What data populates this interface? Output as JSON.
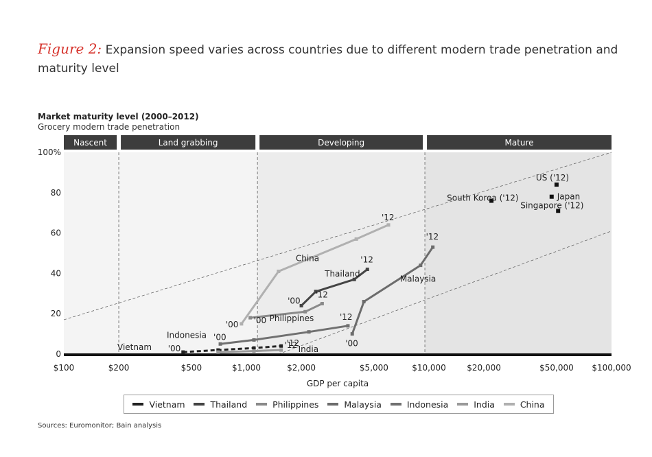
{
  "header": {
    "figure_label": "Figure 2:",
    "figure_text": "Expansion speed varies across countries due to different modern trade penetration and maturity level"
  },
  "chart_data": {
    "type": "line",
    "title": "Market maturity level (2000–2012)",
    "subtitle": "Grocery modern trade penetration",
    "xlabel": "GDP per capita",
    "ylabel": "",
    "x_scale": "log",
    "xlim": [
      100,
      100000
    ],
    "ylim": [
      0,
      100
    ],
    "x_ticks": [
      {
        "value": 100,
        "label": "$100"
      },
      {
        "value": 200,
        "label": "$200"
      },
      {
        "value": 500,
        "label": "$500"
      },
      {
        "value": 1000,
        "label": "$1,000"
      },
      {
        "value": 2000,
        "label": "$2,000"
      },
      {
        "value": 5000,
        "label": "$5,000"
      },
      {
        "value": 10000,
        "label": "$10,000"
      },
      {
        "value": 20000,
        "label": "$20,000"
      },
      {
        "value": 50000,
        "label": "$50,000"
      },
      {
        "value": 100000,
        "label": "$100,000"
      }
    ],
    "y_ticks": [
      {
        "value": 0,
        "label": "0"
      },
      {
        "value": 20,
        "label": "20"
      },
      {
        "value": 40,
        "label": "40"
      },
      {
        "value": 60,
        "label": "60"
      },
      {
        "value": 80,
        "label": "80"
      },
      {
        "value": 100,
        "label": "100%"
      }
    ],
    "stages": [
      {
        "name": "Nascent",
        "x_start": 100,
        "x_end": 200
      },
      {
        "name": "Land grabbing",
        "x_start": 200,
        "x_end": 1150
      },
      {
        "name": "Developing",
        "x_start": 1150,
        "x_end": 9500
      },
      {
        "name": "Mature",
        "x_start": 9500,
        "x_end": 100000
      }
    ],
    "stage_dividers": [
      200,
      1150,
      9500
    ],
    "shaded_regions": [
      {
        "x_start": 100,
        "x_end": 1150,
        "color": "#f4f4f4"
      },
      {
        "x_start": 1150,
        "x_end": 9500,
        "color": "#ececec"
      },
      {
        "x_start": 9500,
        "x_end": 100000,
        "color": "#e4e4e4"
      }
    ],
    "trend_band": [
      {
        "from": [
          100,
          17
        ],
        "to": [
          100000,
          100
        ]
      },
      {
        "from": [
          1500,
          0
        ],
        "to": [
          100000,
          61
        ]
      }
    ],
    "series": [
      {
        "name": "Vietnam",
        "color": "#222222",
        "dashed": true,
        "points": [
          [
            450,
            1
          ],
          [
            700,
            2
          ],
          [
            1100,
            3
          ],
          [
            1550,
            4
          ]
        ],
        "labels": [
          {
            "text": "Vietnam",
            "x": 100,
            "y": 2,
            "dx": 78,
            "dy": 0
          },
          {
            "text": "'00",
            "x": 450,
            "y": 1,
            "dx": -22,
            "dy": -1
          },
          {
            "text": "'12",
            "x": 1550,
            "y": 4,
            "dx": 8,
            "dy": 0
          }
        ]
      },
      {
        "name": "Thailand",
        "color": "#444444",
        "dashed": false,
        "points": [
          [
            2000,
            24
          ],
          [
            2400,
            31
          ],
          [
            3900,
            37
          ],
          [
            4600,
            42
          ]
        ],
        "labels": [
          {
            "text": "Thailand",
            "x": 2400,
            "y": 31,
            "dx": 13,
            "dy": -22
          },
          {
            "text": "'00",
            "x": 2000,
            "y": 24,
            "dx": -20,
            "dy": -3
          },
          {
            "text": "'12",
            "x": 4600,
            "y": 42,
            "dx": -10,
            "dy": -10
          }
        ]
      },
      {
        "name": "Philippines",
        "color": "#8a8a8a",
        "dashed": false,
        "points": [
          [
            1050,
            18
          ],
          [
            2100,
            21
          ],
          [
            2600,
            25
          ]
        ],
        "labels": [
          {
            "text": "Philippines",
            "x": 1050,
            "y": 18,
            "dx": 28,
            "dy": 5
          },
          {
            "text": "'00",
            "x": 1050,
            "y": 18,
            "dx": 5,
            "dy": 8
          },
          {
            "text": "'12",
            "x": 2600,
            "y": 25,
            "dx": -10,
            "dy": -9
          }
        ]
      },
      {
        "name": "Malaysia",
        "color": "#6c6c6c",
        "dashed": false,
        "points": [
          [
            3800,
            10
          ],
          [
            4400,
            26
          ],
          [
            9000,
            44
          ],
          [
            10500,
            53
          ]
        ],
        "labels": [
          {
            "text": "Malaysia",
            "x": 9000,
            "y": 44,
            "dx": -30,
            "dy": 24
          },
          {
            "text": "'00",
            "x": 3800,
            "y": 10,
            "dx": -10,
            "dy": 18
          },
          {
            "text": "'12",
            "x": 10500,
            "y": 53,
            "dx": -10,
            "dy": -11
          }
        ]
      },
      {
        "name": "Indonesia",
        "color": "#707070",
        "dashed": false,
        "points": [
          [
            720,
            5
          ],
          [
            1100,
            7
          ],
          [
            2200,
            11
          ],
          [
            3600,
            14
          ]
        ],
        "labels": [
          {
            "text": "Indonesia",
            "x": 100,
            "y": 8,
            "dx": 150,
            "dy": 0
          },
          {
            "text": "'00",
            "x": 720,
            "y": 5,
            "dx": -10,
            "dy": -6
          },
          {
            "text": "'12",
            "x": 3600,
            "y": 14,
            "dx": -12,
            "dy": -9
          }
        ]
      },
      {
        "name": "India",
        "color": "#9a9a9a",
        "dashed": false,
        "points": [
          [
            700,
            1
          ],
          [
            1100,
            1.5
          ],
          [
            1550,
            2
          ]
        ],
        "labels": [
          {
            "text": "India",
            "x": 1550,
            "y": 2,
            "dx": 25,
            "dy": 3
          },
          {
            "text": "'12",
            "x": 1550,
            "y": 2,
            "dx": 5,
            "dy": -3
          }
        ]
      },
      {
        "name": "China",
        "color": "#b0b0b0",
        "dashed": false,
        "points": [
          [
            940,
            15
          ],
          [
            1500,
            41
          ],
          [
            4000,
            57
          ],
          [
            6000,
            64
          ]
        ],
        "labels": [
          {
            "text": "China",
            "x": 1500,
            "y": 41,
            "dx": 25,
            "dy": -15
          },
          {
            "text": "'00",
            "x": 940,
            "y": 15,
            "dx": -23,
            "dy": 5
          },
          {
            "text": "'12",
            "x": 6000,
            "y": 64,
            "dx": -10,
            "dy": -7
          }
        ]
      }
    ],
    "points": [
      {
        "name": "US ('12)",
        "x": 50000,
        "y": 84,
        "label_dx": -30,
        "label_dy": -10
      },
      {
        "name": "Japan",
        "x": 47000,
        "y": 78,
        "label_dx": 8,
        "label_dy": 0
      },
      {
        "name": "South Korea ('12)",
        "x": 22000,
        "y": 76,
        "label_dx": -65,
        "label_dy": -4
      },
      {
        "name": "Singapore ('12)",
        "x": 51000,
        "y": 71,
        "label_dx": -55,
        "label_dy": -8
      }
    ],
    "legend_position": "bottom",
    "grid": false
  },
  "legend": {
    "items": [
      {
        "label": "Vietnam",
        "color": "#222222",
        "dashed": true
      },
      {
        "label": "Thailand",
        "color": "#444444",
        "dashed": false
      },
      {
        "label": "Philippines",
        "color": "#8a8a8a",
        "dashed": false
      },
      {
        "label": "Malaysia",
        "color": "#6c6c6c",
        "dashed": false
      },
      {
        "label": "Indonesia",
        "color": "#707070",
        "dashed": false
      },
      {
        "label": "India",
        "color": "#9a9a9a",
        "dashed": false
      },
      {
        "label": "China",
        "color": "#b0b0b0",
        "dashed": false
      }
    ]
  },
  "footer": {
    "sources": "Sources: Euromonitor; Bain analysis"
  }
}
